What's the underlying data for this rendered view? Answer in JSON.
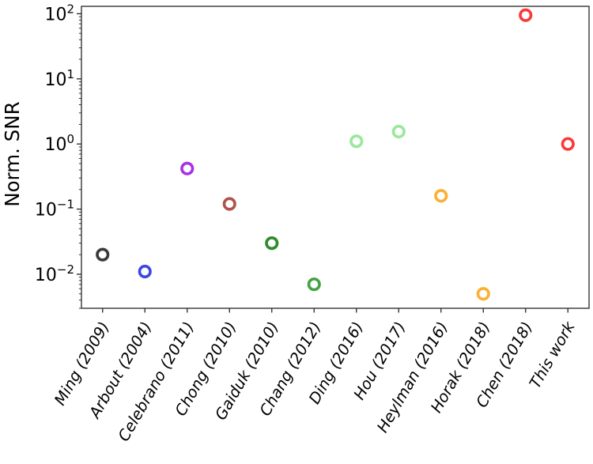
{
  "figure": {
    "background": "#ffffff",
    "axis_color": "#262626"
  },
  "chart_data": {
    "type": "scatter",
    "title": "",
    "xlabel": "",
    "ylabel": "Norm. SNR",
    "y_scale": "log",
    "ylim": [
      0.003,
      130
    ],
    "y_tick_exponents": [
      2,
      1,
      0,
      -1,
      -2
    ],
    "grid": false,
    "legend": "none",
    "marker": {
      "shape": "open-circle",
      "radius": 6.8,
      "stroke_width": 3.6
    },
    "categories": [
      "Ming (2009)",
      "Arbout (2004)",
      "Celebrano (2011)",
      "Chong (2010)",
      "Gaiduk (2010)",
      "Chang (2012)",
      "Ding (2016)",
      "Hou (2017)",
      "Heylman (2016)",
      "Horak (2018)",
      "Chen (2018)",
      "This work"
    ],
    "points": [
      {
        "label": "Ming (2009)",
        "value": 0.02,
        "color": "#3a3a3a"
      },
      {
        "label": "Arbout (2004)",
        "value": 0.011,
        "color": "#3c49e3"
      },
      {
        "label": "Celebrano (2011)",
        "value": 0.42,
        "color": "#a832e3"
      },
      {
        "label": "Chong (2010)",
        "value": 0.12,
        "color": "#b2524e"
      },
      {
        "label": "Gaiduk (2010)",
        "value": 0.03,
        "color": "#2e8b2e"
      },
      {
        "label": "Chang (2012)",
        "value": 0.007,
        "color": "#43a343"
      },
      {
        "label": "Ding (2016)",
        "value": 1.1,
        "color": "#9ae89a"
      },
      {
        "label": "Hou (2017)",
        "value": 1.55,
        "color": "#9ae89a"
      },
      {
        "label": "Heylman (2016)",
        "value": 0.16,
        "color": "#fbb034"
      },
      {
        "label": "Horak (2018)",
        "value": 0.005,
        "color": "#fbb034"
      },
      {
        "label": "Chen (2018)",
        "value": 95,
        "color": "#fa3a3a"
      },
      {
        "label": "This work",
        "value": 1.0,
        "color": "#fa3a3a"
      }
    ]
  }
}
